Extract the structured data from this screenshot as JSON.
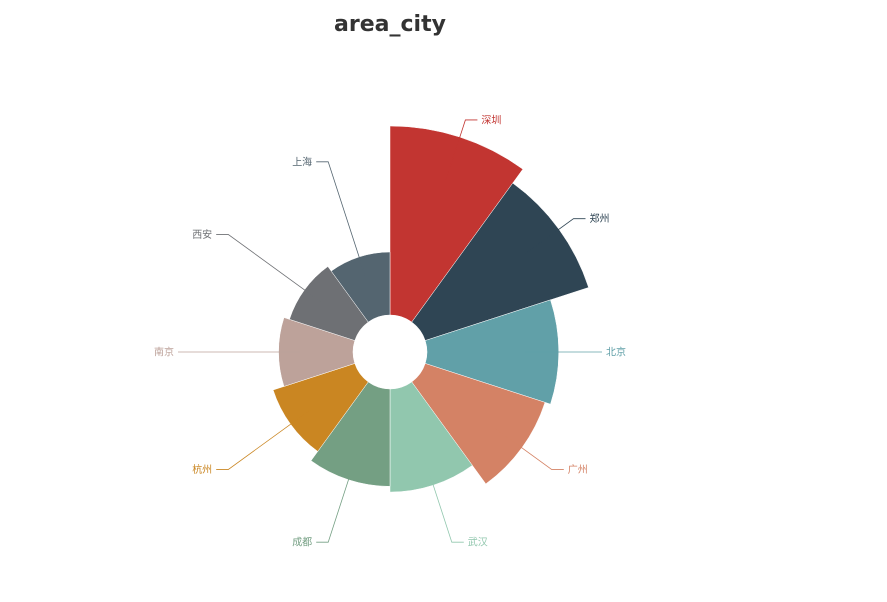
{
  "chart_data": {
    "type": "pie",
    "subtype": "rose",
    "title": "area_city",
    "categories": [
      "深圳",
      "郑州",
      "北京",
      "广州",
      "武汉",
      "成都",
      "杭州",
      "南京",
      "西安",
      "上海"
    ],
    "values": [
      225,
      210,
      175,
      170,
      150,
      145,
      135,
      125,
      120,
      115
    ],
    "colors": [
      "#c23531",
      "#2f4554",
      "#61a0a8",
      "#d48265",
      "#91c7ae",
      "#749f83",
      "#ca8622",
      "#bda29a",
      "#6e7074",
      "#546570"
    ],
    "start_angle": "top",
    "direction": "clockwise",
    "legend": "none"
  }
}
